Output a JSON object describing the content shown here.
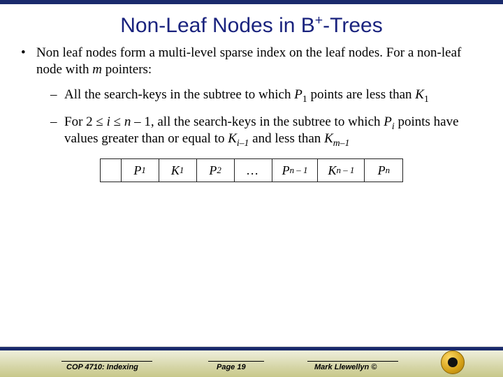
{
  "title_parts": {
    "pre": "Non-Leaf Nodes in B",
    "sup": "+",
    "post": "-Trees"
  },
  "bullet_main": {
    "pre": "Non leaf nodes form a multi-level sparse index on the leaf nodes. For a non-leaf node with ",
    "m": "m",
    "post": " pointers:"
  },
  "sub1": {
    "pre": "All the search-keys in the subtree to which ",
    "P": "P",
    "one": "1",
    "mid": " points are less than ",
    "K": "K",
    "one2": "1"
  },
  "sub2": {
    "pre": "For 2 ",
    "le1": "≤",
    "i": " i ",
    "le2": "≤",
    "n": " n ",
    "minus1": "– 1, all the search-keys in the subtree to which ",
    "P": "P",
    "isub": "i",
    "mid": " points have values greater than or equal to ",
    "K": "K",
    "im1": "i–1",
    "mid2": " and less than ",
    "K2": "K",
    "mm1": "m–1"
  },
  "cells": [
    {
      "text": "",
      "sub": ""
    },
    {
      "text": "P",
      "sub": "1"
    },
    {
      "text": "K",
      "sub": "1"
    },
    {
      "text": "P",
      "sub": "2"
    },
    {
      "text": "…",
      "sub": "",
      "dots": true
    },
    {
      "text": "P",
      "sub": "n – 1"
    },
    {
      "text": "K",
      "sub": "n – 1"
    },
    {
      "text": "P",
      "sub": "n"
    }
  ],
  "footer": {
    "course": "COP 4710: Indexing",
    "page": "Page 19",
    "author": "Mark Llewellyn ©"
  },
  "colors": {
    "title": "#1a237e",
    "accent": "#1a2a6c",
    "footer_grad_top": "#f5f5e8",
    "footer_grad_bot": "#c8c88a"
  }
}
